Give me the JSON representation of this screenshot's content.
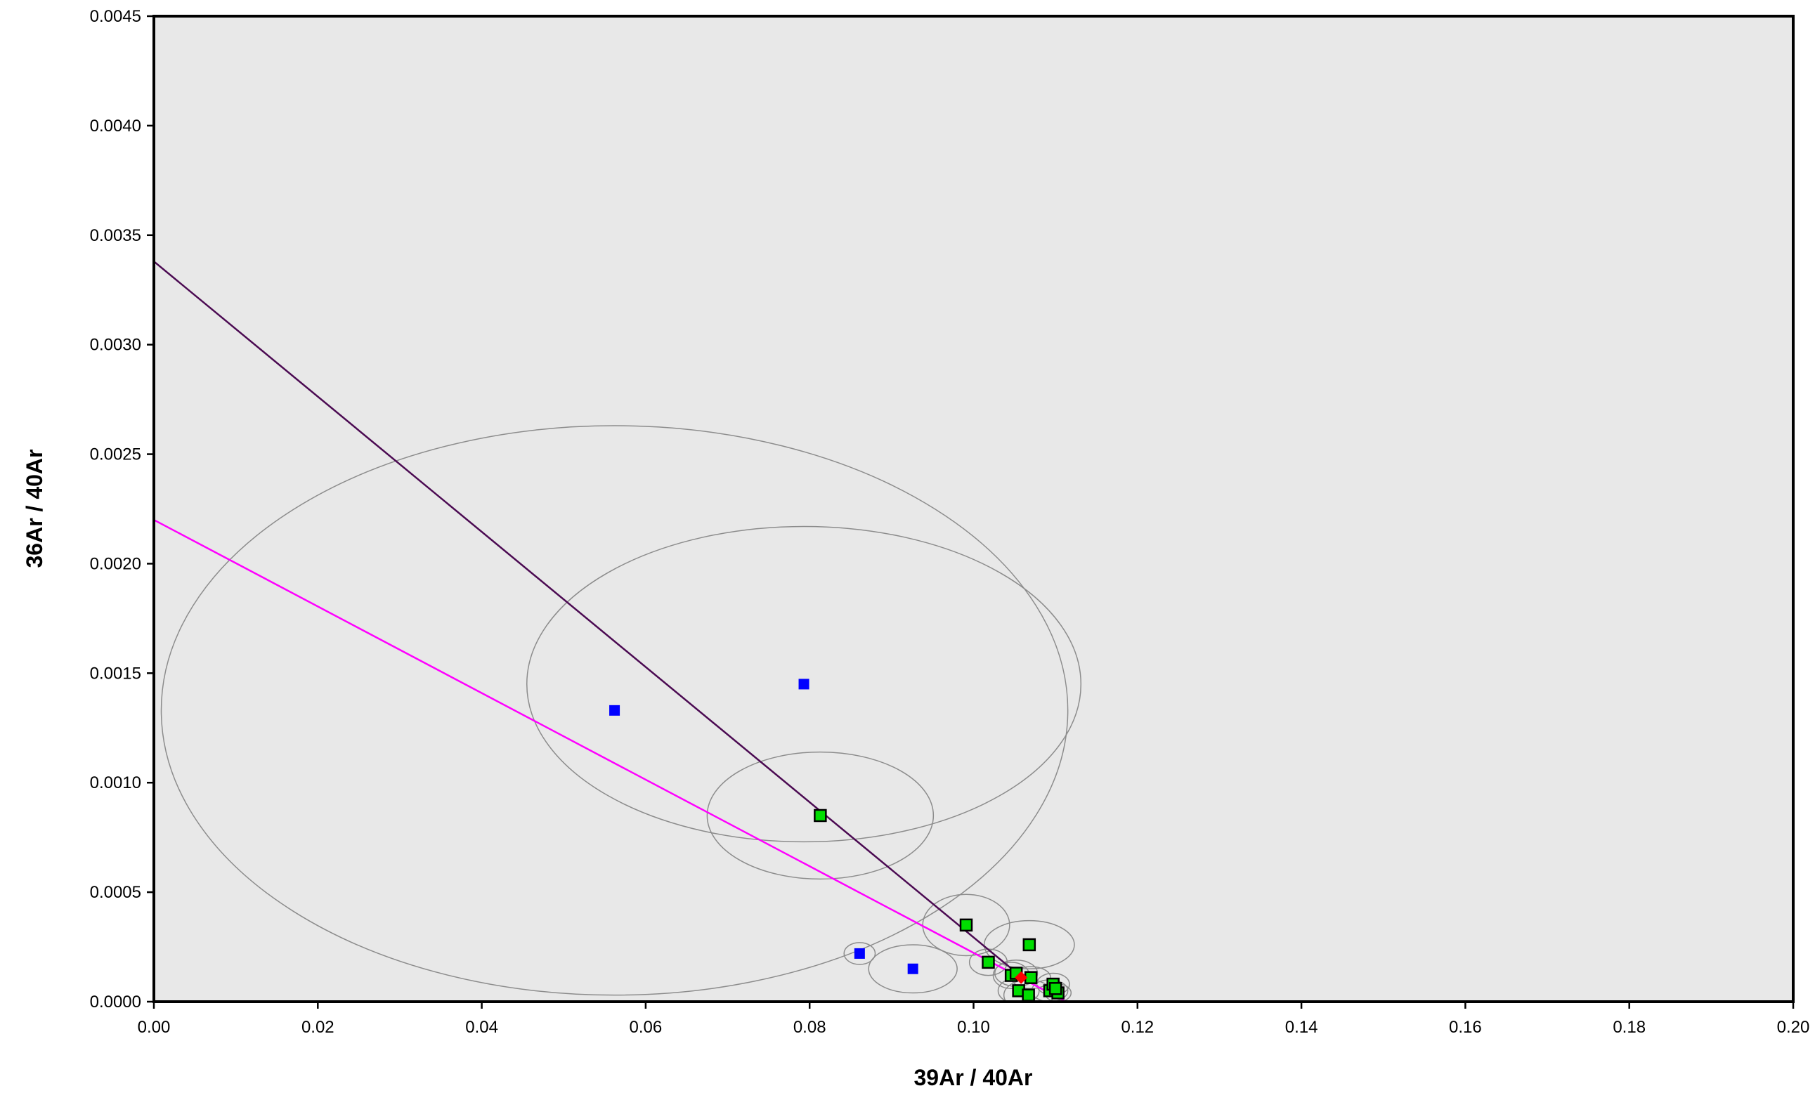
{
  "chart_data": {
    "type": "scatter",
    "title": "",
    "xlabel": "39Ar / 40Ar",
    "ylabel": "36Ar / 40Ar",
    "xlim": [
      0,
      0.2
    ],
    "ylim": [
      0,
      0.0045
    ],
    "x_ticks": [
      "0.00",
      "0.02",
      "0.04",
      "0.06",
      "0.08",
      "0.10",
      "0.12",
      "0.14",
      "0.16",
      "0.18",
      "0.20"
    ],
    "y_ticks": [
      "0.0000",
      "0.0005",
      "0.0010",
      "0.0015",
      "0.0020",
      "0.0025",
      "0.0030",
      "0.0035",
      "0.0040",
      "0.0045"
    ],
    "grid": false,
    "background": "#e8e8e8",
    "series": [
      {
        "marker": "square",
        "color": "#0000ff",
        "points": [
          {
            "x": 0.0562,
            "y": 0.00133
          },
          {
            "x": 0.0793,
            "y": 0.00145
          },
          {
            "x": 0.0861,
            "y": 0.00022
          },
          {
            "x": 0.0926,
            "y": 0.00015
          }
        ]
      },
      {
        "marker": "square",
        "color": "#00dd00",
        "edge_color": "#000000",
        "points": [
          {
            "x": 0.0813,
            "y": 0.00085
          },
          {
            "x": 0.0991,
            "y": 0.00035
          },
          {
            "x": 0.1018,
            "y": 0.00018
          },
          {
            "x": 0.1068,
            "y": 0.00026
          },
          {
            "x": 0.1046,
            "y": 0.00012
          },
          {
            "x": 0.1052,
            "y": 0.00013
          },
          {
            "x": 0.107,
            "y": 0.00011
          },
          {
            "x": 0.1055,
            "y": 5e-05
          },
          {
            "x": 0.1067,
            "y": 3e-05
          },
          {
            "x": 0.1093,
            "y": 5e-05
          },
          {
            "x": 0.1097,
            "y": 8e-05
          },
          {
            "x": 0.1103,
            "y": 4e-05
          },
          {
            "x": 0.11,
            "y": 6e-05
          }
        ]
      },
      {
        "marker": "diamond",
        "color": "#ff0000",
        "points": [
          {
            "x": 0.1058,
            "y": 0.00011
          }
        ]
      }
    ],
    "ellipses": [
      {
        "cx": 0.0562,
        "cy": 0.00133,
        "rx": 0.0553,
        "ry": 0.0013
      },
      {
        "cx": 0.0793,
        "cy": 0.00145,
        "rx": 0.0338,
        "ry": 0.00072
      },
      {
        "cx": 0.0813,
        "cy": 0.00085,
        "rx": 0.0138,
        "ry": 0.00029
      },
      {
        "cx": 0.0861,
        "cy": 0.00022,
        "rx": 0.0019,
        "ry": 5e-05
      },
      {
        "cx": 0.0926,
        "cy": 0.00015,
        "rx": 0.0054,
        "ry": 0.00011
      },
      {
        "cx": 0.0991,
        "cy": 0.00035,
        "rx": 0.0053,
        "ry": 0.00014
      },
      {
        "cx": 0.1018,
        "cy": 0.00018,
        "rx": 0.0023,
        "ry": 6e-05
      },
      {
        "cx": 0.1068,
        "cy": 0.00026,
        "rx": 0.0055,
        "ry": 0.00011
      },
      {
        "cx": 0.1046,
        "cy": 0.00012,
        "rx": 0.0022,
        "ry": 6e-05
      },
      {
        "cx": 0.1052,
        "cy": 0.00013,
        "rx": 0.0026,
        "ry": 6e-05
      },
      {
        "cx": 0.107,
        "cy": 0.00011,
        "rx": 0.0024,
        "ry": 5e-05
      },
      {
        "cx": 0.1055,
        "cy": 5e-05,
        "rx": 0.0025,
        "ry": 6e-05
      },
      {
        "cx": 0.1067,
        "cy": 3e-05,
        "rx": 0.003,
        "ry": 7e-05
      },
      {
        "cx": 0.1093,
        "cy": 5e-05,
        "rx": 0.0022,
        "ry": 5e-05
      },
      {
        "cx": 0.1097,
        "cy": 8e-05,
        "rx": 0.002,
        "ry": 5e-05
      },
      {
        "cx": 0.1103,
        "cy": 4e-05,
        "rx": 0.0016,
        "ry": 4e-05
      }
    ],
    "lines": [
      {
        "color": "#4b0a52",
        "points": [
          [
            0,
            0.00338
          ],
          [
            0.1053,
            0.00013
          ]
        ]
      },
      {
        "color": "#ff00ff",
        "points": [
          [
            0,
            0.0022
          ],
          [
            0.1133,
            -4e-05
          ]
        ]
      }
    ]
  }
}
